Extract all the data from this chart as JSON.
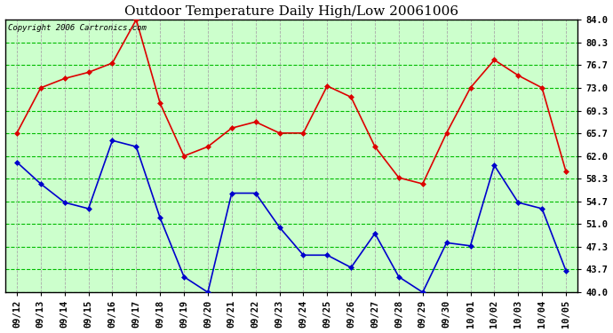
{
  "title": "Outdoor Temperature Daily High/Low 20061006",
  "copyright": "Copyright 2006 Cartronics.com",
  "x_labels": [
    "09/12",
    "09/13",
    "09/14",
    "09/15",
    "09/16",
    "09/17",
    "09/18",
    "09/19",
    "09/20",
    "09/21",
    "09/22",
    "09/23",
    "09/24",
    "09/25",
    "09/26",
    "09/27",
    "09/28",
    "09/29",
    "09/30",
    "10/01",
    "10/02",
    "10/03",
    "10/04",
    "10/05"
  ],
  "high_temps": [
    65.7,
    73.0,
    74.5,
    75.5,
    77.0,
    84.0,
    70.5,
    62.0,
    63.5,
    66.5,
    67.5,
    65.7,
    65.7,
    73.3,
    71.5,
    63.5,
    58.5,
    57.5,
    65.7,
    73.0,
    77.5,
    75.0,
    73.0,
    59.5
  ],
  "low_temps": [
    61.0,
    57.5,
    54.5,
    53.5,
    64.5,
    63.5,
    52.0,
    42.5,
    40.0,
    56.0,
    56.0,
    50.5,
    46.0,
    46.0,
    44.0,
    49.5,
    42.5,
    40.0,
    48.0,
    47.5,
    60.5,
    54.5,
    53.5,
    43.5
  ],
  "high_color": "#dd0000",
  "low_color": "#0000cc",
  "plot_bg_color": "#ccffcc",
  "fig_bg_color": "#ffffff",
  "h_grid_color": "#00bb00",
  "v_grid_color": "#aaaaaa",
  "border_color": "#000000",
  "marker": "D",
  "marker_size": 3,
  "line_width": 1.2,
  "y_min": 40.0,
  "y_max": 84.0,
  "y_ticks": [
    40.0,
    43.7,
    47.3,
    51.0,
    54.7,
    58.3,
    62.0,
    65.7,
    69.3,
    73.0,
    76.7,
    80.3,
    84.0
  ],
  "title_fontsize": 11,
  "tick_fontsize": 7.5,
  "copyright_fontsize": 6.5
}
